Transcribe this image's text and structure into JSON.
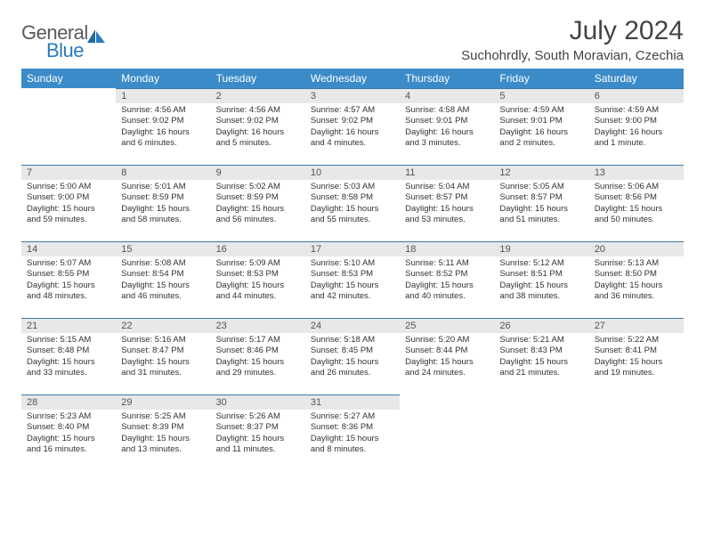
{
  "logo": {
    "general": "General",
    "blue": "Blue"
  },
  "title": "July 2024",
  "location": "Suchohrdly, South Moravian, Czechia",
  "colors": {
    "header_bg": "#3b8bc8",
    "header_text": "#ffffff",
    "daynum_bg": "#e8e8e8",
    "daynum_border": "#3b7aa8",
    "text": "#333333",
    "title_text": "#444444",
    "logo_gray": "#5a5a5a",
    "logo_blue": "#2b7bbf",
    "background": "#ffffff"
  },
  "fonts": {
    "title_size": 30,
    "location_size": 15,
    "header_size": 12,
    "daynum_size": 11,
    "content_size": 9.5
  },
  "weekdays": [
    "Sunday",
    "Monday",
    "Tuesday",
    "Wednesday",
    "Thursday",
    "Friday",
    "Saturday"
  ],
  "weeks": [
    [
      null,
      {
        "d": "1",
        "sr": "Sunrise: 4:56 AM",
        "ss": "Sunset: 9:02 PM",
        "dl1": "Daylight: 16 hours",
        "dl2": "and 6 minutes."
      },
      {
        "d": "2",
        "sr": "Sunrise: 4:56 AM",
        "ss": "Sunset: 9:02 PM",
        "dl1": "Daylight: 16 hours",
        "dl2": "and 5 minutes."
      },
      {
        "d": "3",
        "sr": "Sunrise: 4:57 AM",
        "ss": "Sunset: 9:02 PM",
        "dl1": "Daylight: 16 hours",
        "dl2": "and 4 minutes."
      },
      {
        "d": "4",
        "sr": "Sunrise: 4:58 AM",
        "ss": "Sunset: 9:01 PM",
        "dl1": "Daylight: 16 hours",
        "dl2": "and 3 minutes."
      },
      {
        "d": "5",
        "sr": "Sunrise: 4:59 AM",
        "ss": "Sunset: 9:01 PM",
        "dl1": "Daylight: 16 hours",
        "dl2": "and 2 minutes."
      },
      {
        "d": "6",
        "sr": "Sunrise: 4:59 AM",
        "ss": "Sunset: 9:00 PM",
        "dl1": "Daylight: 16 hours",
        "dl2": "and 1 minute."
      }
    ],
    [
      {
        "d": "7",
        "sr": "Sunrise: 5:00 AM",
        "ss": "Sunset: 9:00 PM",
        "dl1": "Daylight: 15 hours",
        "dl2": "and 59 minutes."
      },
      {
        "d": "8",
        "sr": "Sunrise: 5:01 AM",
        "ss": "Sunset: 8:59 PM",
        "dl1": "Daylight: 15 hours",
        "dl2": "and 58 minutes."
      },
      {
        "d": "9",
        "sr": "Sunrise: 5:02 AM",
        "ss": "Sunset: 8:59 PM",
        "dl1": "Daylight: 15 hours",
        "dl2": "and 56 minutes."
      },
      {
        "d": "10",
        "sr": "Sunrise: 5:03 AM",
        "ss": "Sunset: 8:58 PM",
        "dl1": "Daylight: 15 hours",
        "dl2": "and 55 minutes."
      },
      {
        "d": "11",
        "sr": "Sunrise: 5:04 AM",
        "ss": "Sunset: 8:57 PM",
        "dl1": "Daylight: 15 hours",
        "dl2": "and 53 minutes."
      },
      {
        "d": "12",
        "sr": "Sunrise: 5:05 AM",
        "ss": "Sunset: 8:57 PM",
        "dl1": "Daylight: 15 hours",
        "dl2": "and 51 minutes."
      },
      {
        "d": "13",
        "sr": "Sunrise: 5:06 AM",
        "ss": "Sunset: 8:56 PM",
        "dl1": "Daylight: 15 hours",
        "dl2": "and 50 minutes."
      }
    ],
    [
      {
        "d": "14",
        "sr": "Sunrise: 5:07 AM",
        "ss": "Sunset: 8:55 PM",
        "dl1": "Daylight: 15 hours",
        "dl2": "and 48 minutes."
      },
      {
        "d": "15",
        "sr": "Sunrise: 5:08 AM",
        "ss": "Sunset: 8:54 PM",
        "dl1": "Daylight: 15 hours",
        "dl2": "and 46 minutes."
      },
      {
        "d": "16",
        "sr": "Sunrise: 5:09 AM",
        "ss": "Sunset: 8:53 PM",
        "dl1": "Daylight: 15 hours",
        "dl2": "and 44 minutes."
      },
      {
        "d": "17",
        "sr": "Sunrise: 5:10 AM",
        "ss": "Sunset: 8:53 PM",
        "dl1": "Daylight: 15 hours",
        "dl2": "and 42 minutes."
      },
      {
        "d": "18",
        "sr": "Sunrise: 5:11 AM",
        "ss": "Sunset: 8:52 PM",
        "dl1": "Daylight: 15 hours",
        "dl2": "and 40 minutes."
      },
      {
        "d": "19",
        "sr": "Sunrise: 5:12 AM",
        "ss": "Sunset: 8:51 PM",
        "dl1": "Daylight: 15 hours",
        "dl2": "and 38 minutes."
      },
      {
        "d": "20",
        "sr": "Sunrise: 5:13 AM",
        "ss": "Sunset: 8:50 PM",
        "dl1": "Daylight: 15 hours",
        "dl2": "and 36 minutes."
      }
    ],
    [
      {
        "d": "21",
        "sr": "Sunrise: 5:15 AM",
        "ss": "Sunset: 8:48 PM",
        "dl1": "Daylight: 15 hours",
        "dl2": "and 33 minutes."
      },
      {
        "d": "22",
        "sr": "Sunrise: 5:16 AM",
        "ss": "Sunset: 8:47 PM",
        "dl1": "Daylight: 15 hours",
        "dl2": "and 31 minutes."
      },
      {
        "d": "23",
        "sr": "Sunrise: 5:17 AM",
        "ss": "Sunset: 8:46 PM",
        "dl1": "Daylight: 15 hours",
        "dl2": "and 29 minutes."
      },
      {
        "d": "24",
        "sr": "Sunrise: 5:18 AM",
        "ss": "Sunset: 8:45 PM",
        "dl1": "Daylight: 15 hours",
        "dl2": "and 26 minutes."
      },
      {
        "d": "25",
        "sr": "Sunrise: 5:20 AM",
        "ss": "Sunset: 8:44 PM",
        "dl1": "Daylight: 15 hours",
        "dl2": "and 24 minutes."
      },
      {
        "d": "26",
        "sr": "Sunrise: 5:21 AM",
        "ss": "Sunset: 8:43 PM",
        "dl1": "Daylight: 15 hours",
        "dl2": "and 21 minutes."
      },
      {
        "d": "27",
        "sr": "Sunrise: 5:22 AM",
        "ss": "Sunset: 8:41 PM",
        "dl1": "Daylight: 15 hours",
        "dl2": "and 19 minutes."
      }
    ],
    [
      {
        "d": "28",
        "sr": "Sunrise: 5:23 AM",
        "ss": "Sunset: 8:40 PM",
        "dl1": "Daylight: 15 hours",
        "dl2": "and 16 minutes."
      },
      {
        "d": "29",
        "sr": "Sunrise: 5:25 AM",
        "ss": "Sunset: 8:39 PM",
        "dl1": "Daylight: 15 hours",
        "dl2": "and 13 minutes."
      },
      {
        "d": "30",
        "sr": "Sunrise: 5:26 AM",
        "ss": "Sunset: 8:37 PM",
        "dl1": "Daylight: 15 hours",
        "dl2": "and 11 minutes."
      },
      {
        "d": "31",
        "sr": "Sunrise: 5:27 AM",
        "ss": "Sunset: 8:36 PM",
        "dl1": "Daylight: 15 hours",
        "dl2": "and 8 minutes."
      },
      null,
      null,
      null
    ]
  ]
}
